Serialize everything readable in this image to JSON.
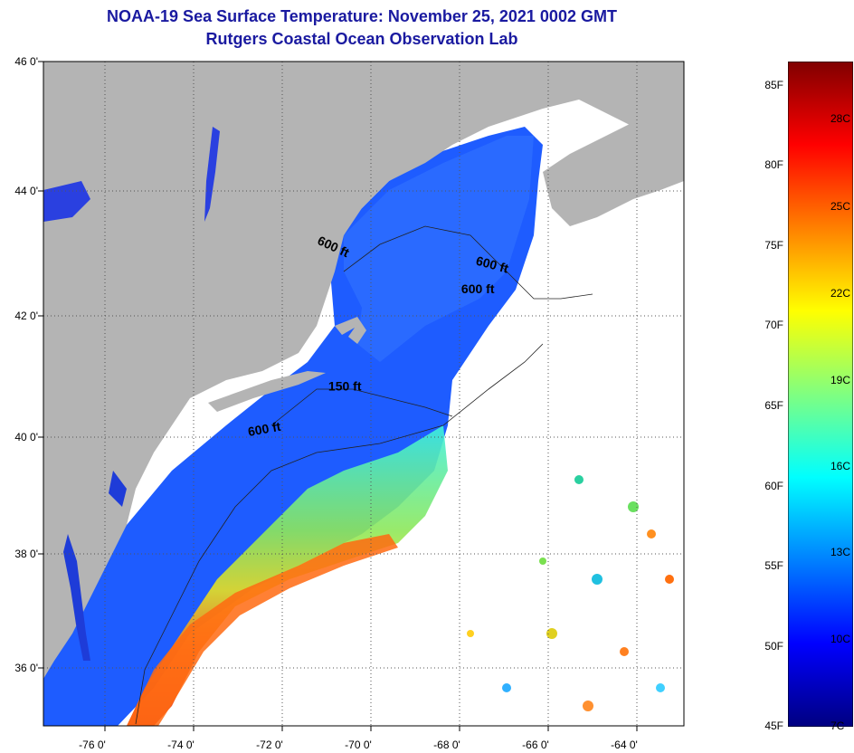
{
  "title": {
    "line1": "NOAA-19 Sea Surface Temperature:  November 25, 2021 0002 GMT",
    "line2": "Rutgers Coastal Ocean Observation Lab"
  },
  "colors": {
    "title": "#1a1aa0",
    "land": "#b4b4b4",
    "no_data": "#ffffff",
    "grid": "#555555"
  },
  "map": {
    "lat_labels": [
      "46 0'",
      "44 0'",
      "42 0'",
      "40 0'",
      "38 0'",
      "36 0'"
    ],
    "lon_labels": [
      "-76 0'",
      "-74 0'",
      "-72 0'",
      "-70 0'",
      "-68 0'",
      "-66 0'",
      "-64 0'"
    ],
    "contour_labels": [
      {
        "text": "600 ft",
        "lon": -70.2,
        "lat": 42.9,
        "angle": 25
      },
      {
        "text": "600 ft",
        "lon": -66.6,
        "lat": 42.6,
        "angle": 15
      },
      {
        "text": "600 ft",
        "lon": -66.9,
        "lat": 42.2,
        "angle": 0
      },
      {
        "text": "150 ft",
        "lon": -69.9,
        "lat": 40.6,
        "angle": 0
      },
      {
        "text": "600 ft",
        "lon": -71.7,
        "lat": 39.9,
        "angle": -10
      }
    ]
  },
  "colorbar": {
    "fahrenheit": [
      "85F",
      "80F",
      "75F",
      "70F",
      "65F",
      "60F",
      "55F",
      "50F",
      "45F"
    ],
    "celsius": [
      "28C",
      "25C",
      "22C",
      "19C",
      "16C",
      "13C",
      "10C",
      "7C"
    ],
    "stops": [
      "#000080",
      "#0000ff",
      "#0080ff",
      "#00ffff",
      "#80ff80",
      "#ffff00",
      "#ff8000",
      "#ff0000",
      "#800000"
    ]
  }
}
